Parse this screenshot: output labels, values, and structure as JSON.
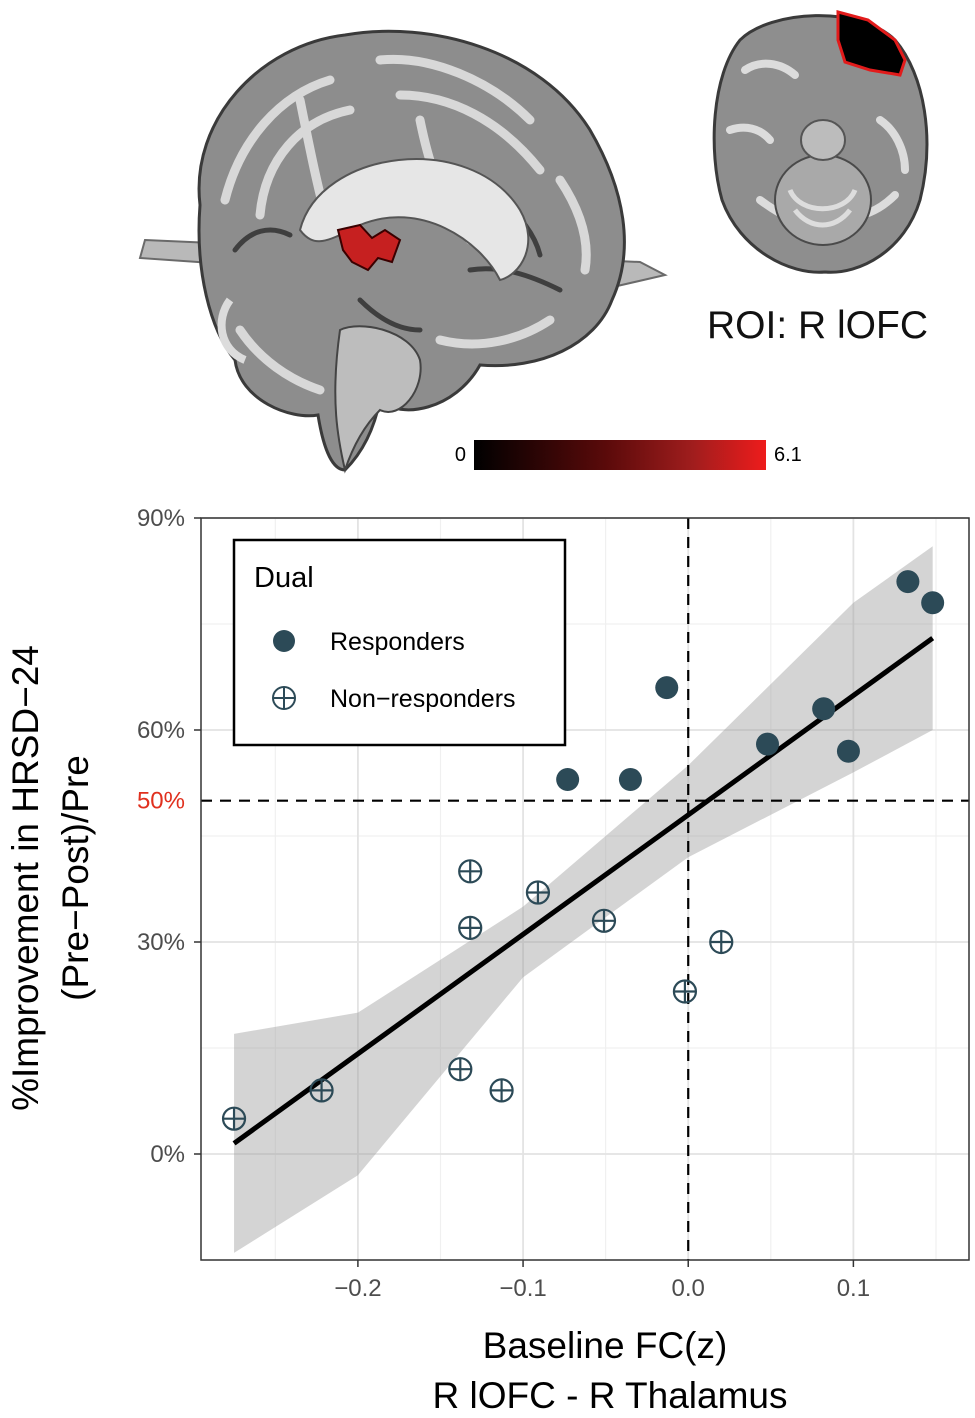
{
  "brain": {
    "roi_label": "ROI: R lOFC",
    "colorbar_min": "0",
    "colorbar_max": "6.1",
    "colorbar_low_color": "#000000",
    "colorbar_high_color": "#ee1c1c"
  },
  "chart_data": {
    "type": "scatter",
    "xlabel_line1": "Baseline FC(z)",
    "xlabel_line2": "R lOFC - R Thalamus",
    "ylabel_line1": "%Improvement in HRSD−24",
    "ylabel_line2": "(Pre−Post)/Pre",
    "xlim": [
      -0.295,
      0.17
    ],
    "ylim": [
      -15,
      90
    ],
    "x_ticks": [
      -0.2,
      -0.1,
      0.0,
      0.1
    ],
    "x_tick_labels": [
      "−0.2",
      "−0.1",
      "0.0",
      "0.1"
    ],
    "y_ticks": [
      0,
      30,
      60,
      90
    ],
    "y_tick_labels": [
      "0%",
      "30%",
      "60%",
      "90%"
    ],
    "extra_y_tick": {
      "value": 50,
      "label": "50%",
      "color": "#e0301e"
    },
    "reference_lines": {
      "x": 0.0,
      "y": 50
    },
    "grid": true,
    "legend": {
      "title": "Dual",
      "placement": "top-left",
      "entries": [
        "Responders",
        "Non−responders"
      ]
    },
    "series": [
      {
        "name": "Responders",
        "color": "#2c4a57",
        "marker": "filled-circle",
        "points": [
          {
            "x": -0.073,
            "y": 53
          },
          {
            "x": -0.035,
            "y": 53
          },
          {
            "x": -0.013,
            "y": 66
          },
          {
            "x": 0.048,
            "y": 58
          },
          {
            "x": 0.082,
            "y": 63
          },
          {
            "x": 0.097,
            "y": 57
          },
          {
            "x": 0.133,
            "y": 81
          },
          {
            "x": 0.148,
            "y": 78
          }
        ]
      },
      {
        "name": "Non−responders",
        "color": "#2c4a57",
        "marker": "circle-plus",
        "points": [
          {
            "x": -0.275,
            "y": 5
          },
          {
            "x": -0.222,
            "y": 9
          },
          {
            "x": -0.138,
            "y": 12
          },
          {
            "x": -0.132,
            "y": 40
          },
          {
            "x": -0.132,
            "y": 32
          },
          {
            "x": -0.113,
            "y": 9
          },
          {
            "x": -0.091,
            "y": 37
          },
          {
            "x": -0.051,
            "y": 33
          },
          {
            "x": -0.002,
            "y": 23
          },
          {
            "x": 0.02,
            "y": 30
          }
        ]
      }
    ],
    "fit_line": {
      "x": [
        -0.275,
        0.148
      ],
      "y": [
        1.5,
        73
      ]
    },
    "confidence_band": {
      "x": [
        -0.275,
        -0.2,
        -0.1,
        0.0,
        0.1,
        0.148
      ],
      "lower": [
        -14,
        -3,
        25,
        42,
        54,
        60
      ],
      "upper": [
        17,
        20,
        35,
        55,
        78,
        86
      ]
    }
  }
}
